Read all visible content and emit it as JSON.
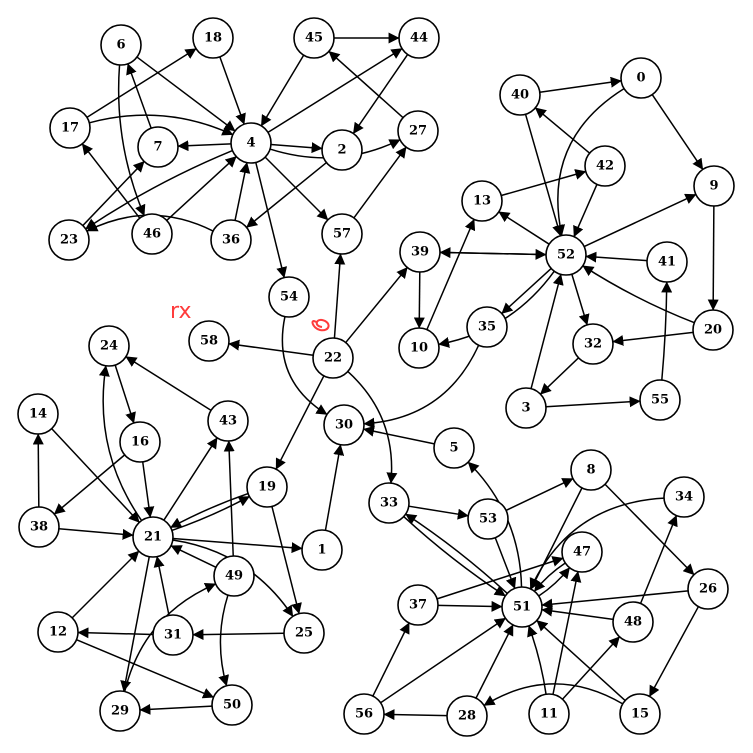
{
  "graph": {
    "type": "directed",
    "nodes": [
      "0",
      "1",
      "2",
      "3",
      "4",
      "5",
      "6",
      "7",
      "8",
      "9",
      "10",
      "11",
      "12",
      "13",
      "14",
      "15",
      "16",
      "17",
      "18",
      "19",
      "20",
      "21",
      "22",
      "23",
      "24",
      "25",
      "26",
      "27",
      "28",
      "29",
      "30",
      "31",
      "32",
      "33",
      "34",
      "35",
      "36",
      "37",
      "38",
      "39",
      "40",
      "41",
      "42",
      "43",
      "44",
      "45",
      "46",
      "47",
      "48",
      "49",
      "50",
      "51",
      "52",
      "53",
      "54",
      "55",
      "56",
      "57",
      "58"
    ],
    "edges": [
      [
        "6",
        "4"
      ],
      [
        "17",
        "4"
      ],
      [
        "17",
        "18"
      ],
      [
        "18",
        "4"
      ],
      [
        "7",
        "6"
      ],
      [
        "4",
        "7"
      ],
      [
        "4",
        "2"
      ],
      [
        "4",
        "44"
      ],
      [
        "45",
        "4"
      ],
      [
        "45",
        "44"
      ],
      [
        "44",
        "2"
      ],
      [
        "2",
        "36"
      ],
      [
        "4",
        "57"
      ],
      [
        "27",
        "45"
      ],
      [
        "4",
        "27"
      ],
      [
        "57",
        "27"
      ],
      [
        "36",
        "4"
      ],
      [
        "46",
        "4"
      ],
      [
        "4",
        "23"
      ],
      [
        "23",
        "7"
      ],
      [
        "36",
        "23"
      ],
      [
        "6",
        "46"
      ],
      [
        "46",
        "17"
      ],
      [
        "4",
        "54"
      ],
      [
        "54",
        "30"
      ],
      [
        "40",
        "0"
      ],
      [
        "0",
        "52"
      ],
      [
        "40",
        "52"
      ],
      [
        "0",
        "9"
      ],
      [
        "42",
        "40"
      ],
      [
        "42",
        "52"
      ],
      [
        "13",
        "42"
      ],
      [
        "52",
        "13"
      ],
      [
        "52",
        "9"
      ],
      [
        "9",
        "20"
      ],
      [
        "39",
        "52"
      ],
      [
        "52",
        "39"
      ],
      [
        "39",
        "10"
      ],
      [
        "52",
        "10"
      ],
      [
        "10",
        "13"
      ],
      [
        "52",
        "35"
      ],
      [
        "52",
        "32"
      ],
      [
        "20",
        "52"
      ],
      [
        "41",
        "52"
      ],
      [
        "55",
        "41"
      ],
      [
        "20",
        "32"
      ],
      [
        "32",
        "3"
      ],
      [
        "3",
        "52"
      ],
      [
        "3",
        "55"
      ],
      [
        "22",
        "57"
      ],
      [
        "22",
        "39"
      ],
      [
        "22",
        "19"
      ],
      [
        "22",
        "33"
      ],
      [
        "22",
        "58"
      ],
      [
        "35",
        "30"
      ],
      [
        "1",
        "30"
      ],
      [
        "5",
        "30"
      ],
      [
        "24",
        "16"
      ],
      [
        "21",
        "24"
      ],
      [
        "43",
        "24"
      ],
      [
        "16",
        "21"
      ],
      [
        "16",
        "38"
      ],
      [
        "14",
        "21"
      ],
      [
        "38",
        "14"
      ],
      [
        "38",
        "21"
      ],
      [
        "19",
        "21"
      ],
      [
        "21",
        "19"
      ],
      [
        "21",
        "43"
      ],
      [
        "49",
        "43"
      ],
      [
        "21",
        "1"
      ],
      [
        "21",
        "25"
      ],
      [
        "19",
        "25"
      ],
      [
        "49",
        "21"
      ],
      [
        "31",
        "21"
      ],
      [
        "12",
        "21"
      ],
      [
        "25",
        "31"
      ],
      [
        "31",
        "12"
      ],
      [
        "12",
        "50"
      ],
      [
        "49",
        "50"
      ],
      [
        "21",
        "29"
      ],
      [
        "50",
        "29"
      ],
      [
        "29",
        "49"
      ],
      [
        "33",
        "53"
      ],
      [
        "53",
        "51"
      ],
      [
        "53",
        "8"
      ],
      [
        "33",
        "51"
      ],
      [
        "51",
        "33"
      ],
      [
        "51",
        "5"
      ],
      [
        "8",
        "51"
      ],
      [
        "8",
        "26"
      ],
      [
        "34",
        "51"
      ],
      [
        "37",
        "47"
      ],
      [
        "37",
        "51"
      ],
      [
        "47",
        "51"
      ],
      [
        "51",
        "47"
      ],
      [
        "26",
        "51"
      ],
      [
        "26",
        "15"
      ],
      [
        "48",
        "34"
      ],
      [
        "48",
        "51"
      ],
      [
        "11",
        "47"
      ],
      [
        "11",
        "48"
      ],
      [
        "11",
        "51"
      ],
      [
        "15",
        "51"
      ],
      [
        "15",
        "28"
      ],
      [
        "28",
        "51"
      ],
      [
        "28",
        "56"
      ],
      [
        "56",
        "51"
      ],
      [
        "56",
        "37"
      ]
    ]
  },
  "annotations": {
    "text": "rx",
    "color": "#ff3b3b"
  }
}
